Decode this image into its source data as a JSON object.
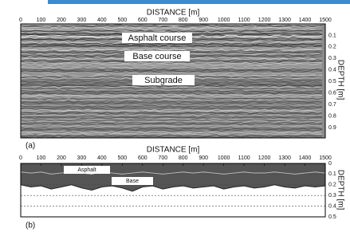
{
  "panel_a": {
    "x_title": "DISTANCE [m]",
    "y_title": "DEPTH [m]",
    "x_ticks": [
      "0",
      "100",
      "200",
      "300",
      "400",
      "500",
      "600",
      "700",
      "800",
      "900",
      "1000",
      "1100",
      "1200",
      "1300",
      "1400",
      "1500"
    ],
    "y_ticks": [
      "0.1",
      "0.2",
      "0.3",
      "0.4",
      "0.5",
      "0.6",
      "0.7",
      "0.8",
      "0.9"
    ],
    "labels": [
      "Asphalt course",
      "Base course",
      "Subgrade"
    ],
    "tag": "(a)"
  },
  "chart_data": {
    "type": "line",
    "x_title": "DISTANCE [m]",
    "y_title": "DEPTH [m]",
    "tag": "(b)",
    "x": [
      0,
      50,
      100,
      150,
      200,
      250,
      300,
      350,
      400,
      450,
      500,
      550,
      600,
      650,
      700,
      750,
      800,
      850,
      900,
      950,
      1000,
      1050,
      1100,
      1150,
      1200,
      1250,
      1300,
      1350,
      1400,
      1450,
      1500
    ],
    "series": [
      {
        "name": "Asphalt",
        "color": "#222",
        "values": [
          0.08,
          0.09,
          0.08,
          0.1,
          0.09,
          0.08,
          0.09,
          0.1,
          0.08,
          0.09,
          0.1,
          0.09,
          0.08,
          0.09,
          0.1,
          0.09,
          0.08,
          0.09,
          0.08,
          0.09,
          0.1,
          0.09,
          0.08,
          0.09,
          0.09,
          0.08,
          0.09,
          0.1,
          0.09,
          0.08,
          0.09
        ]
      },
      {
        "name": "Base",
        "color": "#222",
        "values": [
          0.2,
          0.22,
          0.21,
          0.24,
          0.22,
          0.2,
          0.23,
          0.25,
          0.22,
          0.21,
          0.23,
          0.26,
          0.22,
          0.21,
          0.24,
          0.22,
          0.21,
          0.23,
          0.22,
          0.21,
          0.24,
          0.22,
          0.21,
          0.23,
          0.22,
          0.2,
          0.22,
          0.23,
          0.21,
          0.22,
          0.21
        ]
      }
    ],
    "xlim": [
      0,
      1500
    ],
    "ylim": [
      0,
      0.5
    ],
    "y_inverted": true,
    "xticks": [
      0,
      100,
      200,
      300,
      400,
      500,
      600,
      700,
      800,
      900,
      1000,
      1100,
      1200,
      1300,
      1400,
      1500
    ],
    "yticks": [
      0,
      0.1,
      0.2,
      0.3,
      0.4,
      0.5
    ],
    "grid": true
  }
}
